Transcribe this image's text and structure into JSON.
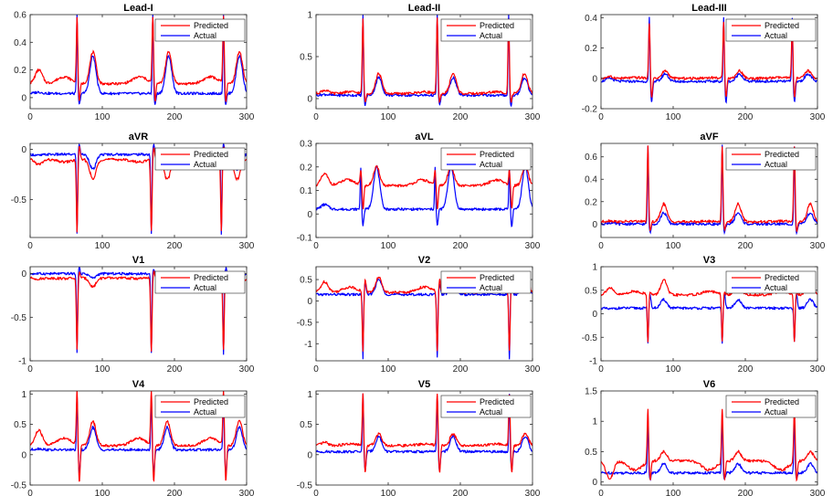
{
  "figure": {
    "rows": 4,
    "cols": 3
  },
  "colors": {
    "predicted": "#ff0000",
    "actual": "#0000ff",
    "axis": "#262626"
  },
  "legend": {
    "predicted": "Predicted",
    "actual": "Actual"
  },
  "chart_data": [
    {
      "type": "line",
      "title": "Lead-I",
      "xlim": [
        0,
        300
      ],
      "ylim": [
        -0.08,
        0.6
      ],
      "xticks": [
        0,
        100,
        200,
        300
      ],
      "yticks": [
        0,
        0.2,
        0.4,
        0.6
      ],
      "ytick_labels": [
        "0",
        "0.2",
        "0.4",
        "0.6"
      ],
      "beats": [
        65,
        170,
        268
      ],
      "baseline_pred": 0.1,
      "baseline_act": 0.03,
      "spike_pred": 0.58,
      "spike_act": 0.6,
      "trough_pred": -0.03,
      "trough_act": -0.05,
      "t_pred": 0.33,
      "t_act": 0.3,
      "pre_pred": 0.2,
      "pre_act": 0.04,
      "series": [
        {
          "name": "Predicted"
        },
        {
          "name": "Actual"
        }
      ]
    },
    {
      "type": "line",
      "title": "Lead-II",
      "xlim": [
        0,
        300
      ],
      "ylim": [
        -0.12,
        1.0
      ],
      "xticks": [
        0,
        100,
        200,
        300
      ],
      "yticks": [
        0,
        0.5,
        1
      ],
      "ytick_labels": [
        "0",
        "0.5",
        "1"
      ],
      "beats": [
        65,
        168,
        267
      ],
      "baseline_pred": 0.06,
      "baseline_act": 0.04,
      "spike_pred": 0.95,
      "spike_act": 1.0,
      "trough_pred": -0.05,
      "trough_act": -0.08,
      "t_pred": 0.3,
      "t_act": 0.25,
      "pre_pred": 0.1,
      "pre_act": 0.05,
      "series": [
        {
          "name": "Predicted"
        },
        {
          "name": "Actual"
        }
      ]
    },
    {
      "type": "line",
      "title": "Lead-III",
      "xlim": [
        0,
        300
      ],
      "ylim": [
        -0.2,
        0.42
      ],
      "xticks": [
        0,
        100,
        200,
        300
      ],
      "yticks": [
        -0.2,
        0,
        0.2,
        0.4
      ],
      "ytick_labels": [
        "-0.2",
        "0",
        "0.2",
        "0.4"
      ],
      "beats": [
        67,
        170,
        265
      ],
      "baseline_pred": 0.0,
      "baseline_act": -0.02,
      "spike_pred": 0.37,
      "spike_act": 0.4,
      "trough_pred": -0.12,
      "trough_act": -0.16,
      "t_pred": 0.05,
      "t_act": 0.03,
      "pre_pred": 0.01,
      "pre_act": 0.0,
      "series": [
        {
          "name": "Predicted"
        },
        {
          "name": "Actual"
        }
      ]
    },
    {
      "type": "line",
      "title": "aVR",
      "xlim": [
        0,
        300
      ],
      "ylim": [
        -0.88,
        0.06
      ],
      "xticks": [
        0,
        100,
        200,
        300
      ],
      "yticks": [
        -0.5,
        0
      ],
      "ytick_labels": [
        "-0.5",
        "0"
      ],
      "beats": [
        65,
        168,
        265
      ],
      "baseline_pred": -0.1,
      "baseline_act": -0.05,
      "spike_pred": -0.82,
      "spike_act": -0.85,
      "trough_pred": 0.03,
      "trough_act": 0.05,
      "t_pred": -0.3,
      "t_act": -0.2,
      "pre_pred": -0.15,
      "pre_act": -0.06,
      "series": [
        {
          "name": "Predicted"
        },
        {
          "name": "Actual"
        }
      ]
    },
    {
      "type": "line",
      "title": "aVL",
      "xlim": [
        0,
        300
      ],
      "ylim": [
        -0.1,
        0.3
      ],
      "xticks": [
        0,
        100,
        200,
        300
      ],
      "yticks": [
        -0.1,
        0,
        0.1,
        0.2,
        0.3
      ],
      "ytick_labels": [
        "-0.1",
        "0",
        "0.1",
        "0.2",
        "0.3"
      ],
      "beats": [
        62,
        165,
        268
      ],
      "baseline_pred": 0.12,
      "baseline_act": 0.02,
      "spike_pred": 0.18,
      "spike_act": 0.2,
      "trough_pred": 0.02,
      "trough_act": -0.05,
      "t_pred": 0.2,
      "t_act": 0.2,
      "pre_pred": 0.17,
      "pre_act": 0.04,
      "series": [
        {
          "name": "Predicted"
        },
        {
          "name": "Actual"
        }
      ]
    },
    {
      "type": "line",
      "title": "aVF",
      "xlim": [
        0,
        300
      ],
      "ylim": [
        -0.12,
        0.72
      ],
      "xticks": [
        0,
        100,
        200,
        300
      ],
      "yticks": [
        0,
        0.2,
        0.4,
        0.6
      ],
      "ytick_labels": [
        "0",
        "0.2",
        "0.4",
        "0.6"
      ],
      "beats": [
        65,
        168,
        268
      ],
      "baseline_pred": 0.02,
      "baseline_act": 0.0,
      "spike_pred": 0.7,
      "spike_act": 0.7,
      "trough_pred": -0.06,
      "trough_act": -0.08,
      "t_pred": 0.18,
      "t_act": 0.1,
      "pre_pred": 0.03,
      "pre_act": 0.01,
      "series": [
        {
          "name": "Predicted"
        },
        {
          "name": "Actual"
        }
      ]
    },
    {
      "type": "line",
      "title": "V1",
      "xlim": [
        0,
        300
      ],
      "ylim": [
        -1.0,
        0.08
      ],
      "xticks": [
        0,
        100,
        200,
        300
      ],
      "yticks": [
        -1,
        -0.5,
        0
      ],
      "ytick_labels": [
        "-1",
        "-0.5",
        "0"
      ],
      "beats": [
        65,
        168,
        268
      ],
      "baseline_pred": -0.05,
      "baseline_act": 0.0,
      "spike_pred": -0.88,
      "spike_act": -0.92,
      "trough_pred": 0.03,
      "trough_act": 0.06,
      "t_pred": -0.15,
      "t_act": -0.05,
      "pre_pred": -0.06,
      "pre_act": 0.0,
      "series": [
        {
          "name": "Predicted"
        },
        {
          "name": "Actual"
        }
      ]
    },
    {
      "type": "line",
      "title": "V2",
      "xlim": [
        0,
        300
      ],
      "ylim": [
        -1.4,
        0.8
      ],
      "xticks": [
        0,
        100,
        200,
        300
      ],
      "yticks": [
        -1,
        -0.5,
        0,
        0.5
      ],
      "ytick_labels": [
        "-1",
        "-0.5",
        "0",
        "0.5"
      ],
      "beats": [
        65,
        168,
        268
      ],
      "baseline_pred": 0.2,
      "baseline_act": 0.15,
      "spike_pred": -1.2,
      "spike_act": -1.35,
      "trough_pred": 0.5,
      "trough_act": 0.4,
      "t_pred": 0.55,
      "t_act": 0.5,
      "pre_pred": 0.45,
      "pre_act": 0.15,
      "series": [
        {
          "name": "Predicted"
        },
        {
          "name": "Actual"
        }
      ]
    },
    {
      "type": "line",
      "title": "V3",
      "xlim": [
        0,
        300
      ],
      "ylim": [
        -1.0,
        1.0
      ],
      "xticks": [
        0,
        100,
        200,
        300
      ],
      "yticks": [
        -1,
        -0.5,
        0,
        0.5,
        1
      ],
      "ytick_labels": [
        "-1",
        "-0.5",
        "0",
        "0.5",
        "1"
      ],
      "beats": [
        65,
        168,
        268
      ],
      "baseline_pred": 0.4,
      "baseline_act": 0.12,
      "spike_pred": -0.6,
      "spike_act": -0.62,
      "trough_pred": 0.45,
      "trough_act": 0.4,
      "t_pred": 0.72,
      "t_act": 0.3,
      "pre_pred": 0.55,
      "pre_act": 0.1,
      "series": [
        {
          "name": "Predicted"
        },
        {
          "name": "Actual"
        }
      ]
    },
    {
      "type": "line",
      "title": "V4",
      "xlim": [
        0,
        300
      ],
      "ylim": [
        -0.5,
        1.05
      ],
      "xticks": [
        0,
        100,
        200,
        300
      ],
      "yticks": [
        -0.5,
        0,
        0.5,
        1
      ],
      "ytick_labels": [
        "-0.5",
        "0",
        "0.5",
        "1"
      ],
      "beats": [
        65,
        168,
        268
      ],
      "baseline_pred": 0.15,
      "baseline_act": 0.08,
      "spike_pred": 1.05,
      "spike_act": 1.0,
      "trough_pred": -0.45,
      "trough_act": -0.3,
      "t_pred": 0.55,
      "t_act": 0.45,
      "pre_pred": 0.4,
      "pre_act": 0.1,
      "series": [
        {
          "name": "Predicted"
        },
        {
          "name": "Actual"
        }
      ]
    },
    {
      "type": "line",
      "title": "V5",
      "xlim": [
        0,
        300
      ],
      "ylim": [
        -0.5,
        1.05
      ],
      "xticks": [
        0,
        100,
        200,
        300
      ],
      "yticks": [
        -0.5,
        0,
        0.5,
        1
      ],
      "ytick_labels": [
        "-0.5",
        "0",
        "0.5",
        "1"
      ],
      "beats": [
        65,
        168,
        268
      ],
      "baseline_pred": 0.15,
      "baseline_act": 0.05,
      "spike_pred": 1.0,
      "spike_act": 1.0,
      "trough_pred": -0.3,
      "trough_act": -0.25,
      "t_pred": 0.35,
      "t_act": 0.3,
      "pre_pred": 0.2,
      "pre_act": 0.05,
      "series": [
        {
          "name": "Predicted"
        },
        {
          "name": "Actual"
        }
      ]
    },
    {
      "type": "line",
      "title": "V6",
      "xlim": [
        0,
        300
      ],
      "ylim": [
        -0.05,
        1.5
      ],
      "xticks": [
        0,
        100,
        200,
        300
      ],
      "yticks": [
        0,
        0.5,
        1,
        1.5
      ],
      "ytick_labels": [
        "0",
        "0.5",
        "1",
        "1.5"
      ],
      "beats": [
        65,
        168,
        268
      ],
      "baseline_pred": 0.35,
      "baseline_act": 0.15,
      "spike_pred": 1.25,
      "spike_act": 1.1,
      "trough_pred": 0.05,
      "trough_act": 0.05,
      "t_pred": 0.5,
      "t_act": 0.3,
      "pre_pred": 0.05,
      "pre_act": 0.15,
      "series": [
        {
          "name": "Predicted"
        },
        {
          "name": "Actual"
        }
      ]
    }
  ]
}
